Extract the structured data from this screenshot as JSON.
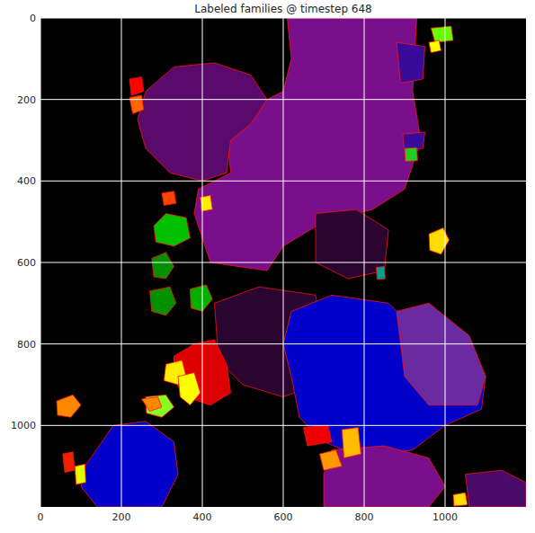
{
  "chart_data": {
    "type": "image",
    "title": "Labeled families @ timestep 648",
    "xlim": [
      0,
      1200
    ],
    "ylim": [
      1200,
      0
    ],
    "xticks": [
      0,
      200,
      400,
      600,
      800,
      1000
    ],
    "yticks": [
      0,
      200,
      400,
      600,
      800,
      1000
    ],
    "grid": true,
    "background": "#000000",
    "regions": [
      {
        "color": "#7a0f8c",
        "points": [
          [
            610,
            0
          ],
          [
            930,
            0
          ],
          [
            920,
            180
          ],
          [
            940,
            300
          ],
          [
            900,
            420
          ],
          [
            820,
            470
          ],
          [
            700,
            500
          ],
          [
            600,
            560
          ],
          [
            560,
            620
          ],
          [
            420,
            600
          ],
          [
            380,
            480
          ],
          [
            390,
            420
          ],
          [
            470,
            380
          ],
          [
            460,
            280
          ],
          [
            520,
            220
          ],
          [
            600,
            180
          ],
          [
            620,
            100
          ]
        ]
      },
      {
        "color": "#5a0a6a",
        "points": [
          [
            260,
            180
          ],
          [
            330,
            120
          ],
          [
            430,
            110
          ],
          [
            520,
            140
          ],
          [
            560,
            200
          ],
          [
            520,
            260
          ],
          [
            470,
            300
          ],
          [
            460,
            380
          ],
          [
            400,
            400
          ],
          [
            320,
            380
          ],
          [
            260,
            320
          ],
          [
            240,
            250
          ]
        ]
      },
      {
        "color": "#3a0a9a",
        "points": [
          [
            880,
            60
          ],
          [
            950,
            70
          ],
          [
            945,
            150
          ],
          [
            890,
            160
          ]
        ]
      },
      {
        "color": "#3a0a9a",
        "points": [
          [
            895,
            285
          ],
          [
            950,
            280
          ],
          [
            945,
            320
          ],
          [
            900,
            325
          ]
        ]
      },
      {
        "color": "#2a0530",
        "points": [
          [
            680,
            480
          ],
          [
            780,
            470
          ],
          [
            860,
            520
          ],
          [
            850,
            620
          ],
          [
            760,
            640
          ],
          [
            680,
            600
          ]
        ]
      },
      {
        "color": "#2a0530",
        "points": [
          [
            430,
            700
          ],
          [
            540,
            660
          ],
          [
            680,
            680
          ],
          [
            700,
            800
          ],
          [
            680,
            900
          ],
          [
            600,
            930
          ],
          [
            500,
            900
          ],
          [
            440,
            840
          ]
        ]
      },
      {
        "color": "#0000c8",
        "points": [
          [
            620,
            720
          ],
          [
            720,
            680
          ],
          [
            860,
            700
          ],
          [
            920,
            760
          ],
          [
            1060,
            790
          ],
          [
            1100,
            880
          ],
          [
            1090,
            960
          ],
          [
            1000,
            1000
          ],
          [
            920,
            1060
          ],
          [
            800,
            1080
          ],
          [
            700,
            1040
          ],
          [
            640,
            980
          ],
          [
            620,
            880
          ],
          [
            600,
            800
          ]
        ]
      },
      {
        "color": "#6a2aa0",
        "points": [
          [
            880,
            720
          ],
          [
            960,
            700
          ],
          [
            1060,
            780
          ],
          [
            1100,
            880
          ],
          [
            1080,
            950
          ],
          [
            960,
            950
          ],
          [
            900,
            880
          ]
        ]
      },
      {
        "color": "#0000c8",
        "points": [
          [
            110,
            1100
          ],
          [
            180,
            1000
          ],
          [
            260,
            990
          ],
          [
            330,
            1040
          ],
          [
            340,
            1120
          ],
          [
            300,
            1200
          ],
          [
            140,
            1200
          ],
          [
            100,
            1150
          ]
        ]
      },
      {
        "color": "#7a0f8c",
        "points": [
          [
            720,
            1060
          ],
          [
            850,
            1050
          ],
          [
            960,
            1080
          ],
          [
            1000,
            1150
          ],
          [
            960,
            1200
          ],
          [
            700,
            1200
          ],
          [
            700,
            1120
          ]
        ]
      },
      {
        "color": "#4a0a6a",
        "points": [
          [
            1050,
            1120
          ],
          [
            1140,
            1110
          ],
          [
            1200,
            1140
          ],
          [
            1200,
            1200
          ],
          [
            1060,
            1200
          ]
        ]
      },
      {
        "color": "#dd0000",
        "points": [
          [
            330,
            830
          ],
          [
            380,
            800
          ],
          [
            430,
            790
          ],
          [
            460,
            850
          ],
          [
            470,
            920
          ],
          [
            420,
            950
          ],
          [
            360,
            930
          ],
          [
            330,
            890
          ]
        ]
      },
      {
        "color": "#00c000",
        "points": [
          [
            280,
            510
          ],
          [
            310,
            480
          ],
          [
            360,
            490
          ],
          [
            370,
            540
          ],
          [
            330,
            560
          ],
          [
            285,
            550
          ]
        ]
      },
      {
        "color": "#009000",
        "points": [
          [
            275,
            590
          ],
          [
            310,
            575
          ],
          [
            330,
            610
          ],
          [
            310,
            640
          ],
          [
            280,
            635
          ]
        ]
      },
      {
        "color": "#009000",
        "points": [
          [
            270,
            670
          ],
          [
            320,
            660
          ],
          [
            335,
            700
          ],
          [
            310,
            730
          ],
          [
            275,
            720
          ]
        ]
      },
      {
        "color": "#00b000",
        "points": [
          [
            370,
            665
          ],
          [
            410,
            655
          ],
          [
            425,
            690
          ],
          [
            400,
            720
          ],
          [
            372,
            712
          ]
        ]
      },
      {
        "color": "#ffee00",
        "points": [
          [
            310,
            850
          ],
          [
            350,
            840
          ],
          [
            360,
            880
          ],
          [
            340,
            900
          ],
          [
            305,
            890
          ]
        ]
      },
      {
        "color": "#ffff00",
        "points": [
          [
            340,
            880
          ],
          [
            380,
            870
          ],
          [
            395,
            920
          ],
          [
            370,
            950
          ],
          [
            345,
            930
          ]
        ]
      },
      {
        "color": "#88ff22",
        "points": [
          [
            260,
            930
          ],
          [
            310,
            925
          ],
          [
            330,
            955
          ],
          [
            300,
            980
          ],
          [
            262,
            970
          ]
        ]
      },
      {
        "color": "#ff8800",
        "points": [
          [
            40,
            940
          ],
          [
            80,
            925
          ],
          [
            100,
            950
          ],
          [
            75,
            980
          ],
          [
            42,
            975
          ]
        ]
      },
      {
        "color": "#ff8800",
        "points": [
          [
            250,
            935
          ],
          [
            290,
            930
          ],
          [
            300,
            955
          ],
          [
            270,
            965
          ]
        ]
      },
      {
        "color": "#ffdd00",
        "points": [
          [
            960,
            530
          ],
          [
            995,
            515
          ],
          [
            1010,
            545
          ],
          [
            990,
            580
          ],
          [
            962,
            570
          ]
        ]
      },
      {
        "color": "#ff0000",
        "points": [
          [
            220,
            150
          ],
          [
            250,
            145
          ],
          [
            255,
            180
          ],
          [
            225,
            190
          ]
        ]
      },
      {
        "color": "#ff6600",
        "points": [
          [
            220,
            195
          ],
          [
            250,
            190
          ],
          [
            255,
            225
          ],
          [
            228,
            235
          ]
        ]
      },
      {
        "color": "#66ff00",
        "points": [
          [
            965,
            25
          ],
          [
            1015,
            20
          ],
          [
            1020,
            55
          ],
          [
            975,
            60
          ]
        ]
      },
      {
        "color": "#22cc22",
        "points": [
          [
            900,
            320
          ],
          [
            930,
            318
          ],
          [
            932,
            350
          ],
          [
            902,
            352
          ]
        ]
      },
      {
        "color": "#ee0000",
        "points": [
          [
            650,
            1005
          ],
          [
            710,
            1000
          ],
          [
            720,
            1040
          ],
          [
            660,
            1050
          ]
        ]
      },
      {
        "color": "#ff9900",
        "points": [
          [
            690,
            1070
          ],
          [
            730,
            1060
          ],
          [
            745,
            1100
          ],
          [
            700,
            1110
          ]
        ]
      },
      {
        "color": "#ffbb00",
        "points": [
          [
            745,
            1010
          ],
          [
            785,
            1005
          ],
          [
            792,
            1070
          ],
          [
            750,
            1080
          ]
        ]
      },
      {
        "color": "#00a090",
        "points": [
          [
            830,
            612
          ],
          [
            850,
            610
          ],
          [
            852,
            640
          ],
          [
            832,
            642
          ]
        ]
      },
      {
        "color": "#ee2200",
        "points": [
          [
            55,
            1070
          ],
          [
            80,
            1065
          ],
          [
            85,
            1110
          ],
          [
            60,
            1115
          ]
        ]
      },
      {
        "color": "#ddff00",
        "points": [
          [
            85,
            1100
          ],
          [
            110,
            1095
          ],
          [
            112,
            1140
          ],
          [
            88,
            1145
          ]
        ]
      },
      {
        "color": "#ffff00",
        "points": [
          [
            960,
            60
          ],
          [
            985,
            55
          ],
          [
            990,
            80
          ],
          [
            965,
            85
          ]
        ]
      },
      {
        "color": "#ff4400",
        "points": [
          [
            300,
            430
          ],
          [
            330,
            425
          ],
          [
            335,
            455
          ],
          [
            305,
            460
          ]
        ]
      },
      {
        "color": "#ffee00",
        "points": [
          [
            395,
            440
          ],
          [
            420,
            435
          ],
          [
            425,
            470
          ],
          [
            398,
            475
          ]
        ]
      },
      {
        "color": "#ffdd00",
        "points": [
          [
            1020,
            1170
          ],
          [
            1050,
            1165
          ],
          [
            1055,
            1195
          ],
          [
            1022,
            1198
          ]
        ]
      }
    ]
  }
}
